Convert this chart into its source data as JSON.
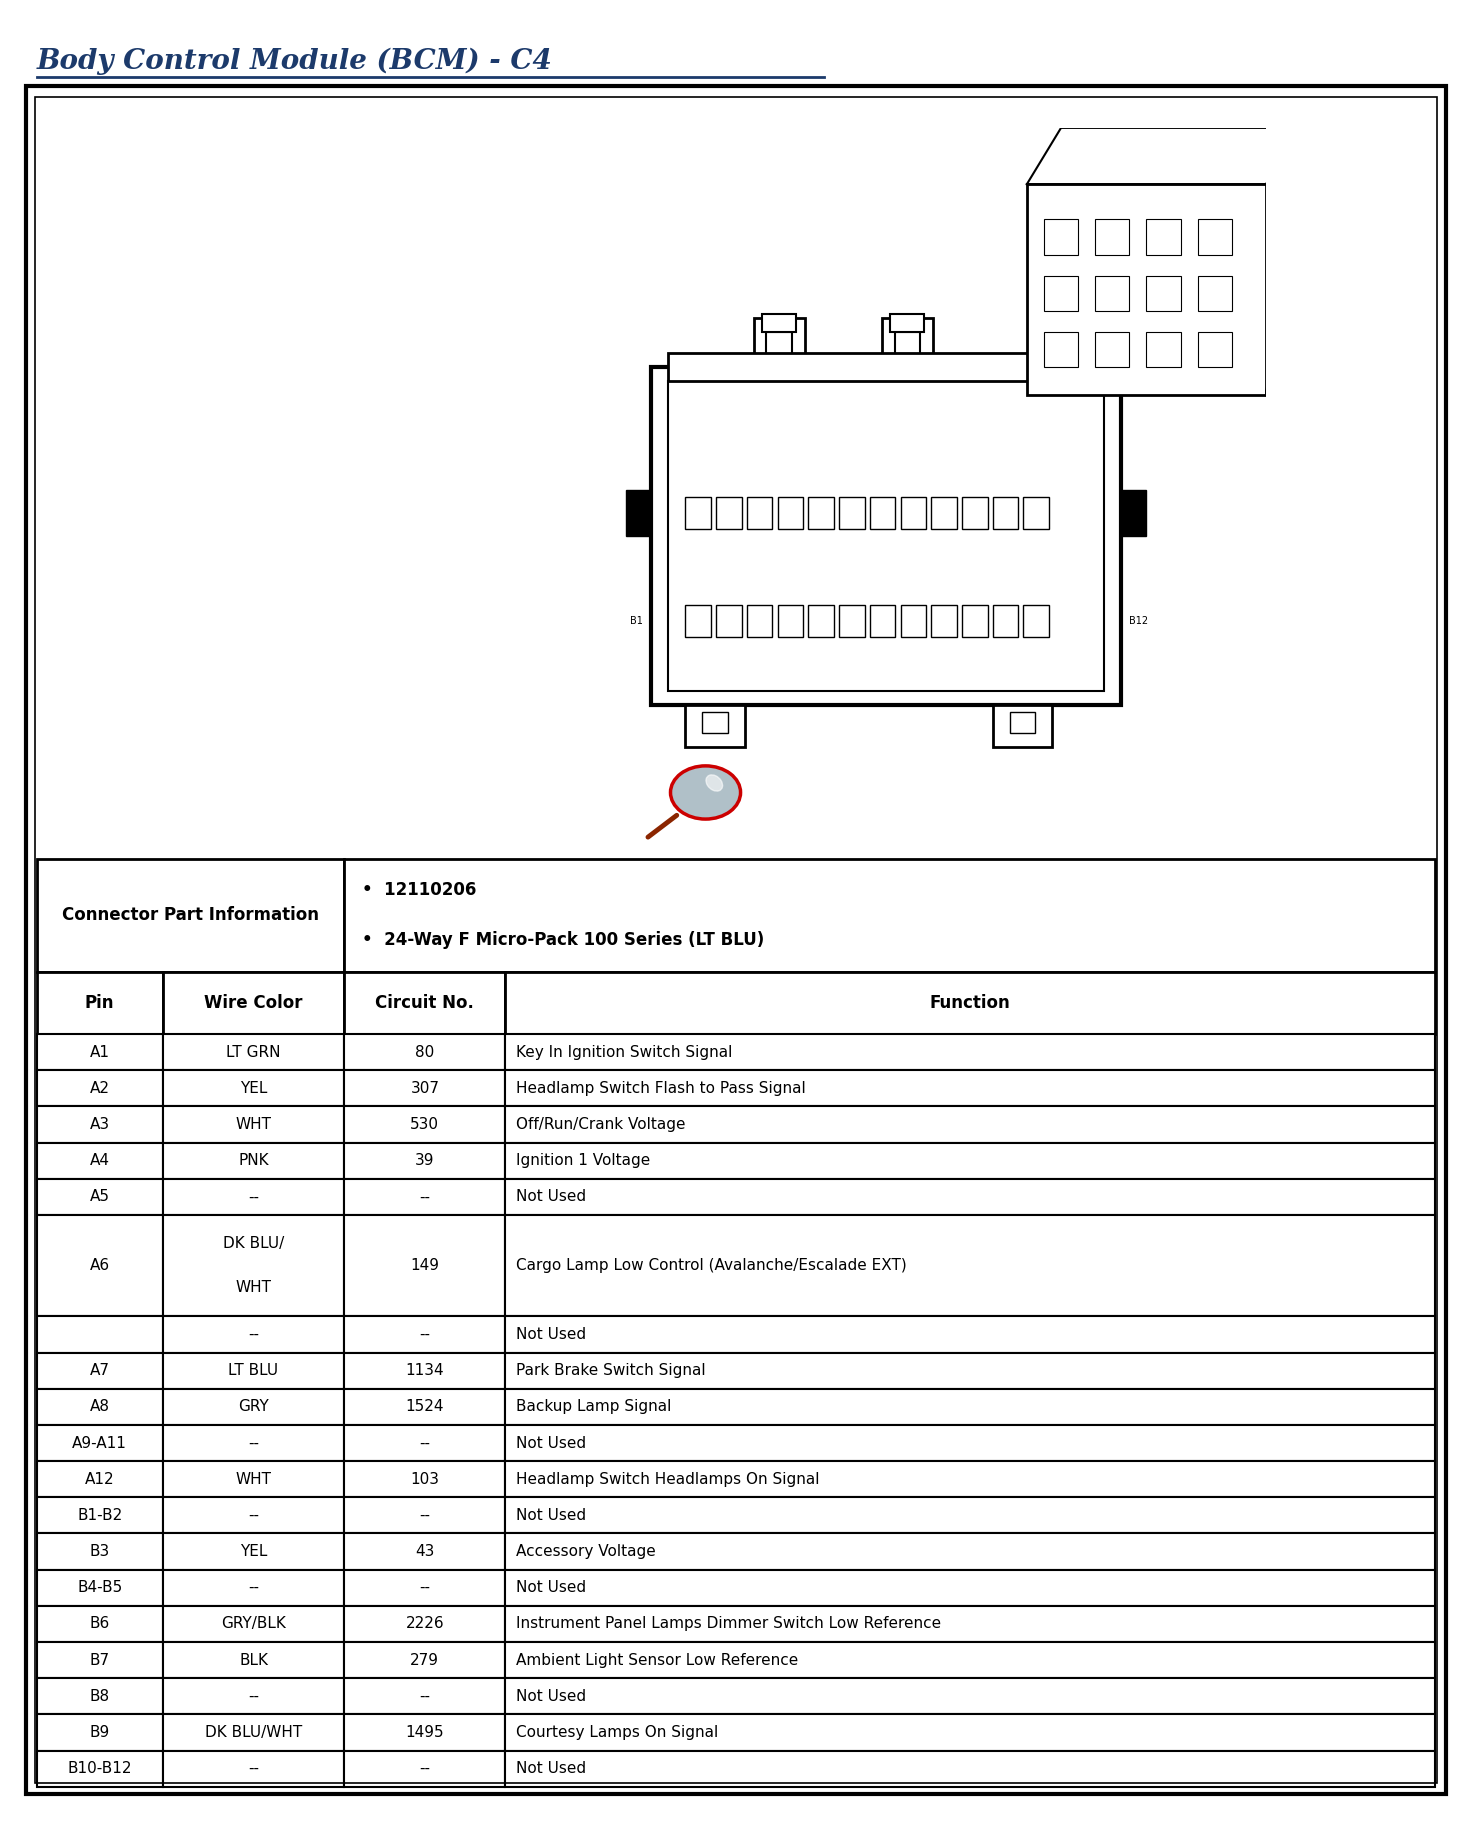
{
  "title": "Body Control Module (BCM) - C4",
  "title_color": "#1C3A6B",
  "background_color": "#FFFFFF",
  "connector_info_label": "Connector Part Information",
  "connector_info_bullet1": "12110206",
  "connector_info_bullet2": "24-Way F Micro-Pack 100 Series (LT BLU)",
  "header_row": [
    "Pin",
    "Wire Color",
    "Circuit No.",
    "Function"
  ],
  "rows": [
    {
      "pin": "A1",
      "wire": "LT GRN",
      "circuit": "80",
      "func": "Key In Ignition Switch Signal",
      "a6_main": false,
      "a6_sub": false
    },
    {
      "pin": "A2",
      "wire": "YEL",
      "circuit": "307",
      "func": "Headlamp Switch Flash to Pass Signal",
      "a6_main": false,
      "a6_sub": false
    },
    {
      "pin": "A3",
      "wire": "WHT",
      "circuit": "530",
      "func": "Off/Run/Crank Voltage",
      "a6_main": false,
      "a6_sub": false
    },
    {
      "pin": "A4",
      "wire": "PNK",
      "circuit": "39",
      "func": "Ignition 1 Voltage",
      "a6_main": false,
      "a6_sub": false
    },
    {
      "pin": "A5",
      "wire": "--",
      "circuit": "--",
      "func": "Not Used",
      "a6_main": false,
      "a6_sub": false
    },
    {
      "pin": "A6",
      "wire": "DK BLU/\n\nWHT",
      "circuit": "149",
      "func": "Cargo Lamp Low Control (Avalanche/Escalade EXT)",
      "a6_main": true,
      "a6_sub": false
    },
    {
      "pin": "",
      "wire": "--",
      "circuit": "--",
      "func": "Not Used",
      "a6_main": false,
      "a6_sub": true
    },
    {
      "pin": "A7",
      "wire": "LT BLU",
      "circuit": "1134",
      "func": "Park Brake Switch Signal",
      "a6_main": false,
      "a6_sub": false
    },
    {
      "pin": "A8",
      "wire": "GRY",
      "circuit": "1524",
      "func": "Backup Lamp Signal",
      "a6_main": false,
      "a6_sub": false
    },
    {
      "pin": "A9-A11",
      "wire": "--",
      "circuit": "--",
      "func": "Not Used",
      "a6_main": false,
      "a6_sub": false
    },
    {
      "pin": "A12",
      "wire": "WHT",
      "circuit": "103",
      "func": "Headlamp Switch Headlamps On Signal",
      "a6_main": false,
      "a6_sub": false
    },
    {
      "pin": "B1-B2",
      "wire": "--",
      "circuit": "--",
      "func": "Not Used",
      "a6_main": false,
      "a6_sub": false
    },
    {
      "pin": "B3",
      "wire": "YEL",
      "circuit": "43",
      "func": "Accessory Voltage",
      "a6_main": false,
      "a6_sub": false
    },
    {
      "pin": "B4-B5",
      "wire": "--",
      "circuit": "--",
      "func": "Not Used",
      "a6_main": false,
      "a6_sub": false
    },
    {
      "pin": "B6",
      "wire": "GRY/BLK",
      "circuit": "2226",
      "func": "Instrument Panel Lamps Dimmer Switch Low Reference",
      "a6_main": false,
      "a6_sub": false
    },
    {
      "pin": "B7",
      "wire": "BLK",
      "circuit": "279",
      "func": "Ambient Light Sensor Low Reference",
      "a6_main": false,
      "a6_sub": false
    },
    {
      "pin": "B8",
      "wire": "--",
      "circuit": "--",
      "func": "Not Used",
      "a6_main": false,
      "a6_sub": false
    },
    {
      "pin": "B9",
      "wire": "DK BLU/WHT",
      "circuit": "1495",
      "func": "Courtesy Lamps On Signal",
      "a6_main": false,
      "a6_sub": false
    },
    {
      "pin": "B10-B12",
      "wire": "--",
      "circuit": "--",
      "func": "Not Used",
      "a6_main": false,
      "a6_sub": false
    }
  ],
  "fig_width": 14.72,
  "fig_height": 18.27
}
